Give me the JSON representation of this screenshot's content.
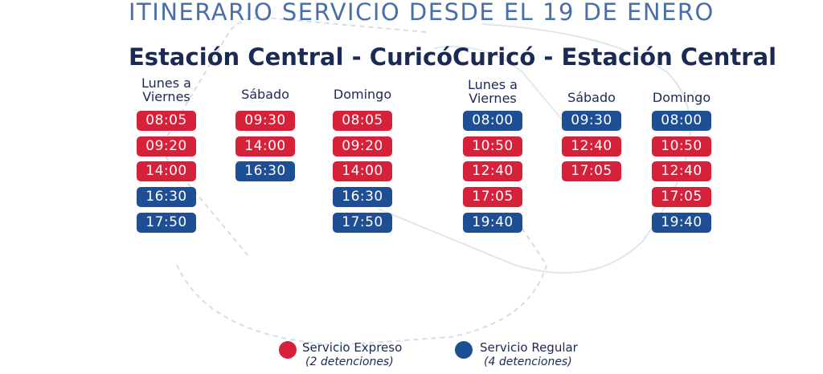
{
  "title": "ITINERARIO SERVICIO DESDE EL 19 DE ENERO",
  "colors": {
    "express": "#d7203a",
    "regular": "#1e4f95",
    "text": "#1b2a55",
    "title": "#4a6fa8"
  },
  "routes": [
    {
      "title": "Estación Central - Curicó",
      "columns": [
        {
          "header_line1": "Lunes a",
          "header_line2": "Viernes",
          "times": [
            {
              "time": "08:05",
              "type": "express"
            },
            {
              "time": "09:20",
              "type": "express"
            },
            {
              "time": "14:00",
              "type": "express"
            },
            {
              "time": "16:30",
              "type": "regular"
            },
            {
              "time": "17:50",
              "type": "regular"
            }
          ]
        },
        {
          "header_line1": "Sábado",
          "header_line2": "",
          "times": [
            {
              "time": "09:30",
              "type": "express"
            },
            {
              "time": "14:00",
              "type": "express"
            },
            {
              "time": "16:30",
              "type": "regular"
            }
          ]
        },
        {
          "header_line1": "Domingo",
          "header_line2": "",
          "times": [
            {
              "time": "08:05",
              "type": "express"
            },
            {
              "time": "09:20",
              "type": "express"
            },
            {
              "time": "14:00",
              "type": "express"
            },
            {
              "time": "16:30",
              "type": "regular"
            },
            {
              "time": "17:50",
              "type": "regular"
            }
          ]
        }
      ]
    },
    {
      "title": "Curicó - Estación Central",
      "columns": [
        {
          "header_line1": "Lunes a",
          "header_line2": "Viernes",
          "times": [
            {
              "time": "08:00",
              "type": "regular"
            },
            {
              "time": "10:50",
              "type": "express"
            },
            {
              "time": "12:40",
              "type": "express"
            },
            {
              "time": "17:05",
              "type": "express"
            },
            {
              "time": "19:40",
              "type": "regular"
            }
          ]
        },
        {
          "header_line1": "Sábado",
          "header_line2": "",
          "times": [
            {
              "time": "09:30",
              "type": "regular"
            },
            {
              "time": "12:40",
              "type": "express"
            },
            {
              "time": "17:05",
              "type": "express"
            }
          ]
        },
        {
          "header_line1": "Domingo",
          "header_line2": "",
          "times": [
            {
              "time": "08:00",
              "type": "regular"
            },
            {
              "time": "10:50",
              "type": "express"
            },
            {
              "time": "12:40",
              "type": "express"
            },
            {
              "time": "17:05",
              "type": "express"
            },
            {
              "time": "19:40",
              "type": "regular"
            }
          ]
        }
      ]
    }
  ],
  "legend": [
    {
      "label": "Servicio Expreso",
      "sub": "(2 detenciones)",
      "type": "express"
    },
    {
      "label": "Servicio Regular",
      "sub": "(4 detenciones)",
      "type": "regular"
    }
  ]
}
